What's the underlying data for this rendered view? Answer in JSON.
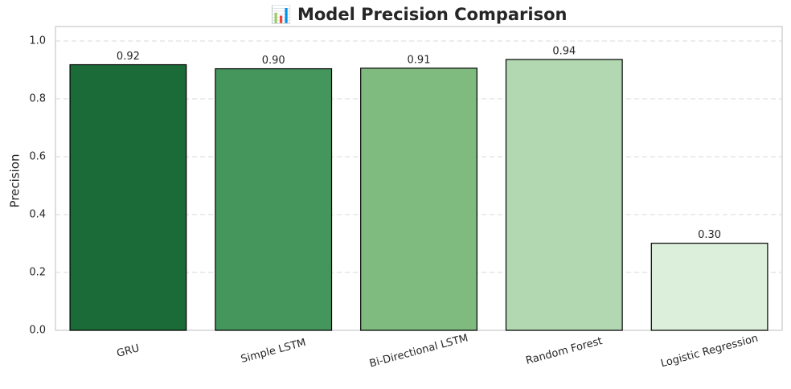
{
  "chart_data": {
    "type": "bar",
    "title": "📊 Model Precision Comparison",
    "ylabel": "Precision",
    "categories": [
      "GRU",
      "Simple LSTM",
      "Bi-Directional LSTM",
      "Random Forest",
      "Logistic Regression"
    ],
    "values": [
      0.918,
      0.904,
      0.906,
      0.936,
      0.301
    ],
    "value_labels": [
      "0.92",
      "0.90",
      "0.91",
      "0.94",
      "0.30"
    ],
    "colors": [
      "#1a6b37",
      "#45965c",
      "#7fbb7f",
      "#b2d8b1",
      "#dcefda"
    ],
    "ylim": [
      0,
      1.05
    ],
    "yticks": [
      {
        "value": 0,
        "label": "0.0"
      },
      0.2,
      0.4,
      0.6,
      0.8,
      {
        "value": 1,
        "label": "1.0"
      }
    ],
    "grid": true
  }
}
